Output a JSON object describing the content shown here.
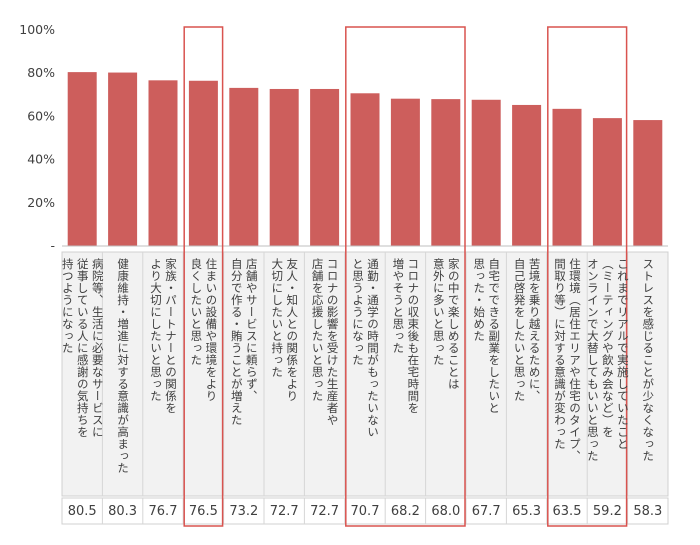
{
  "chart_data": {
    "type": "bar",
    "ylim": [
      0,
      100
    ],
    "yticks": [
      "-",
      "20%",
      "40%",
      "60%",
      "80%",
      "100%"
    ],
    "bar_color": "#cd5e5c",
    "highlight_color": "#d9534f",
    "categories": [
      "病院等、生活に必要なサービスに\n従事している人に感謝の気持ちを\n持つようになった",
      "健康維持・増進に対する意識が高まった",
      "家族・パートナーとの関係を\nより大切にしたいと思った",
      "住まいの設備や環境をより\n良くしたいと思った",
      "店舗やサービスに頼らず、\n自分で作る・賄うことが増えた",
      "友人・知人との関係をより\n大切にしたいと持った",
      "コロナの影響を受けた生産者や\n店舗を応援したいと思った",
      "通勤・通学の時間がもったいない\nと思うようになった",
      "コロナの収束後も在宅時間を\n増やそうと思った",
      "家の中で楽しめることは\n意外に多いと思った",
      "自宅でできる副業をしたいと\n思った・始めた",
      "苦境を乗り越えるために、\n自己啓発をしたいと思った",
      "住環境（居住エリアや住宅のタイプ、\n間取り等）に対する意識が変わった",
      "これまでリアルで実施していたこと\n（ミーティングや飲み会など）を\nオンラインで大替してもいいと思った",
      "ストレスを感じることが少なくなった"
    ],
    "values": [
      80.5,
      80.3,
      76.7,
      76.5,
      73.2,
      72.7,
      72.7,
      70.7,
      68.2,
      68.0,
      67.7,
      65.3,
      63.5,
      59.2,
      58.3
    ],
    "value_labels": [
      "80.5",
      "80.3",
      "76.7",
      "76.5",
      "73.2",
      "72.7",
      "72.7",
      "70.7",
      "68.2",
      "68.0",
      "67.7",
      "65.3",
      "63.5",
      "59.2",
      "58.3"
    ],
    "highlight_groups": [
      [
        3,
        3
      ],
      [
        7,
        9
      ],
      [
        12,
        13
      ]
    ],
    "grid": false,
    "legend": "none"
  }
}
